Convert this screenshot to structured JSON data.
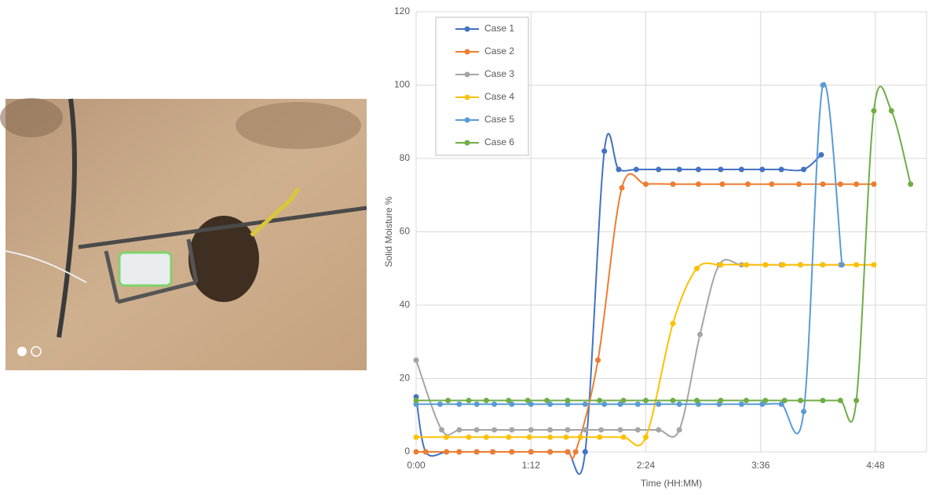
{
  "chart_data": {
    "type": "line",
    "x_label": "Time (HH:MM)",
    "y_label": "Solid Moisture %",
    "xlim": [
      0,
      320
    ],
    "ylim": [
      0,
      120
    ],
    "xticks": [
      {
        "value": 0,
        "label": "0:00"
      },
      {
        "value": 72,
        "label": "1:12"
      },
      {
        "value": 144,
        "label": "2:24"
      },
      {
        "value": 216,
        "label": "3:36"
      },
      {
        "value": 288,
        "label": "4:48"
      }
    ],
    "yticks": [
      0,
      20,
      40,
      60,
      80,
      100,
      120
    ],
    "grid": true,
    "legend": "upper left",
    "series": [
      {
        "name": "Case 1",
        "color": "#4472c4",
        "x": [
          0,
          6,
          19,
          27,
          38,
          48,
          60,
          72,
          84,
          95,
          106,
          118,
          127,
          138,
          152,
          165,
          177,
          191,
          204,
          217,
          229,
          243,
          254
        ],
        "values": [
          15,
          0,
          0,
          0,
          0,
          0,
          0,
          0,
          0,
          0,
          0,
          82,
          77,
          77,
          77,
          77,
          77,
          77,
          77,
          77,
          77,
          77,
          81
        ]
      },
      {
        "name": "Case 2",
        "color": "#ed7d31",
        "x": [
          0,
          6,
          19,
          27,
          38,
          48,
          60,
          72,
          84,
          95,
          100,
          114,
          129,
          144,
          161,
          177,
          192,
          208,
          223,
          240,
          255,
          266,
          276,
          287
        ],
        "values": [
          0,
          0,
          0,
          0,
          0,
          0,
          0,
          0,
          0,
          0,
          0,
          25,
          72,
          73,
          73,
          73,
          73,
          73,
          73,
          73,
          73,
          73,
          73,
          73
        ]
      },
      {
        "name": "Case 3",
        "color": "#a5a5a5",
        "x": [
          0,
          16,
          27,
          38,
          49,
          60,
          72,
          84,
          95,
          106,
          116,
          128,
          139,
          152,
          165,
          178,
          190,
          204,
          219,
          229,
          241,
          255,
          266
        ],
        "values": [
          25,
          6,
          6,
          6,
          6,
          6,
          6,
          6,
          6,
          6,
          6,
          6,
          6,
          6,
          6,
          32,
          51,
          51,
          51,
          51,
          51,
          51,
          51
        ]
      },
      {
        "name": "Case 4",
        "color": "#ffc000",
        "x": [
          0,
          19,
          33,
          44,
          58,
          71,
          84,
          94,
          103,
          115,
          130,
          144,
          161,
          176,
          191,
          207,
          219,
          230,
          241,
          255,
          276,
          287
        ],
        "values": [
          4,
          4,
          4,
          4,
          4,
          4,
          4,
          4,
          4,
          4,
          4,
          4,
          35,
          50,
          51,
          51,
          51,
          51,
          51,
          51,
          51,
          51
        ]
      },
      {
        "name": "Case 5",
        "color": "#5b9bd5",
        "x": [
          0,
          15,
          27,
          38,
          49,
          60,
          72,
          84,
          95,
          106,
          118,
          128,
          139,
          152,
          165,
          177,
          190,
          204,
          217,
          229,
          243,
          255,
          267
        ],
        "values": [
          13,
          13,
          13,
          13,
          13,
          13,
          13,
          13,
          13,
          13,
          13,
          13,
          13,
          13,
          13,
          13,
          13,
          13,
          13,
          13,
          11,
          100,
          51
        ]
      },
      {
        "name": "Case 6",
        "color": "#70ad47",
        "x": [
          0,
          20,
          33,
          44,
          58,
          70,
          82,
          95,
          115,
          130,
          144,
          161,
          176,
          191,
          207,
          219,
          231,
          241,
          255,
          266,
          276,
          287,
          298,
          310
        ],
        "values": [
          14,
          14,
          14,
          14,
          14,
          14,
          14,
          14,
          14,
          14,
          14,
          14,
          14,
          14,
          14,
          14,
          14,
          14,
          14,
          14,
          14,
          93,
          93,
          73
        ]
      }
    ]
  }
}
